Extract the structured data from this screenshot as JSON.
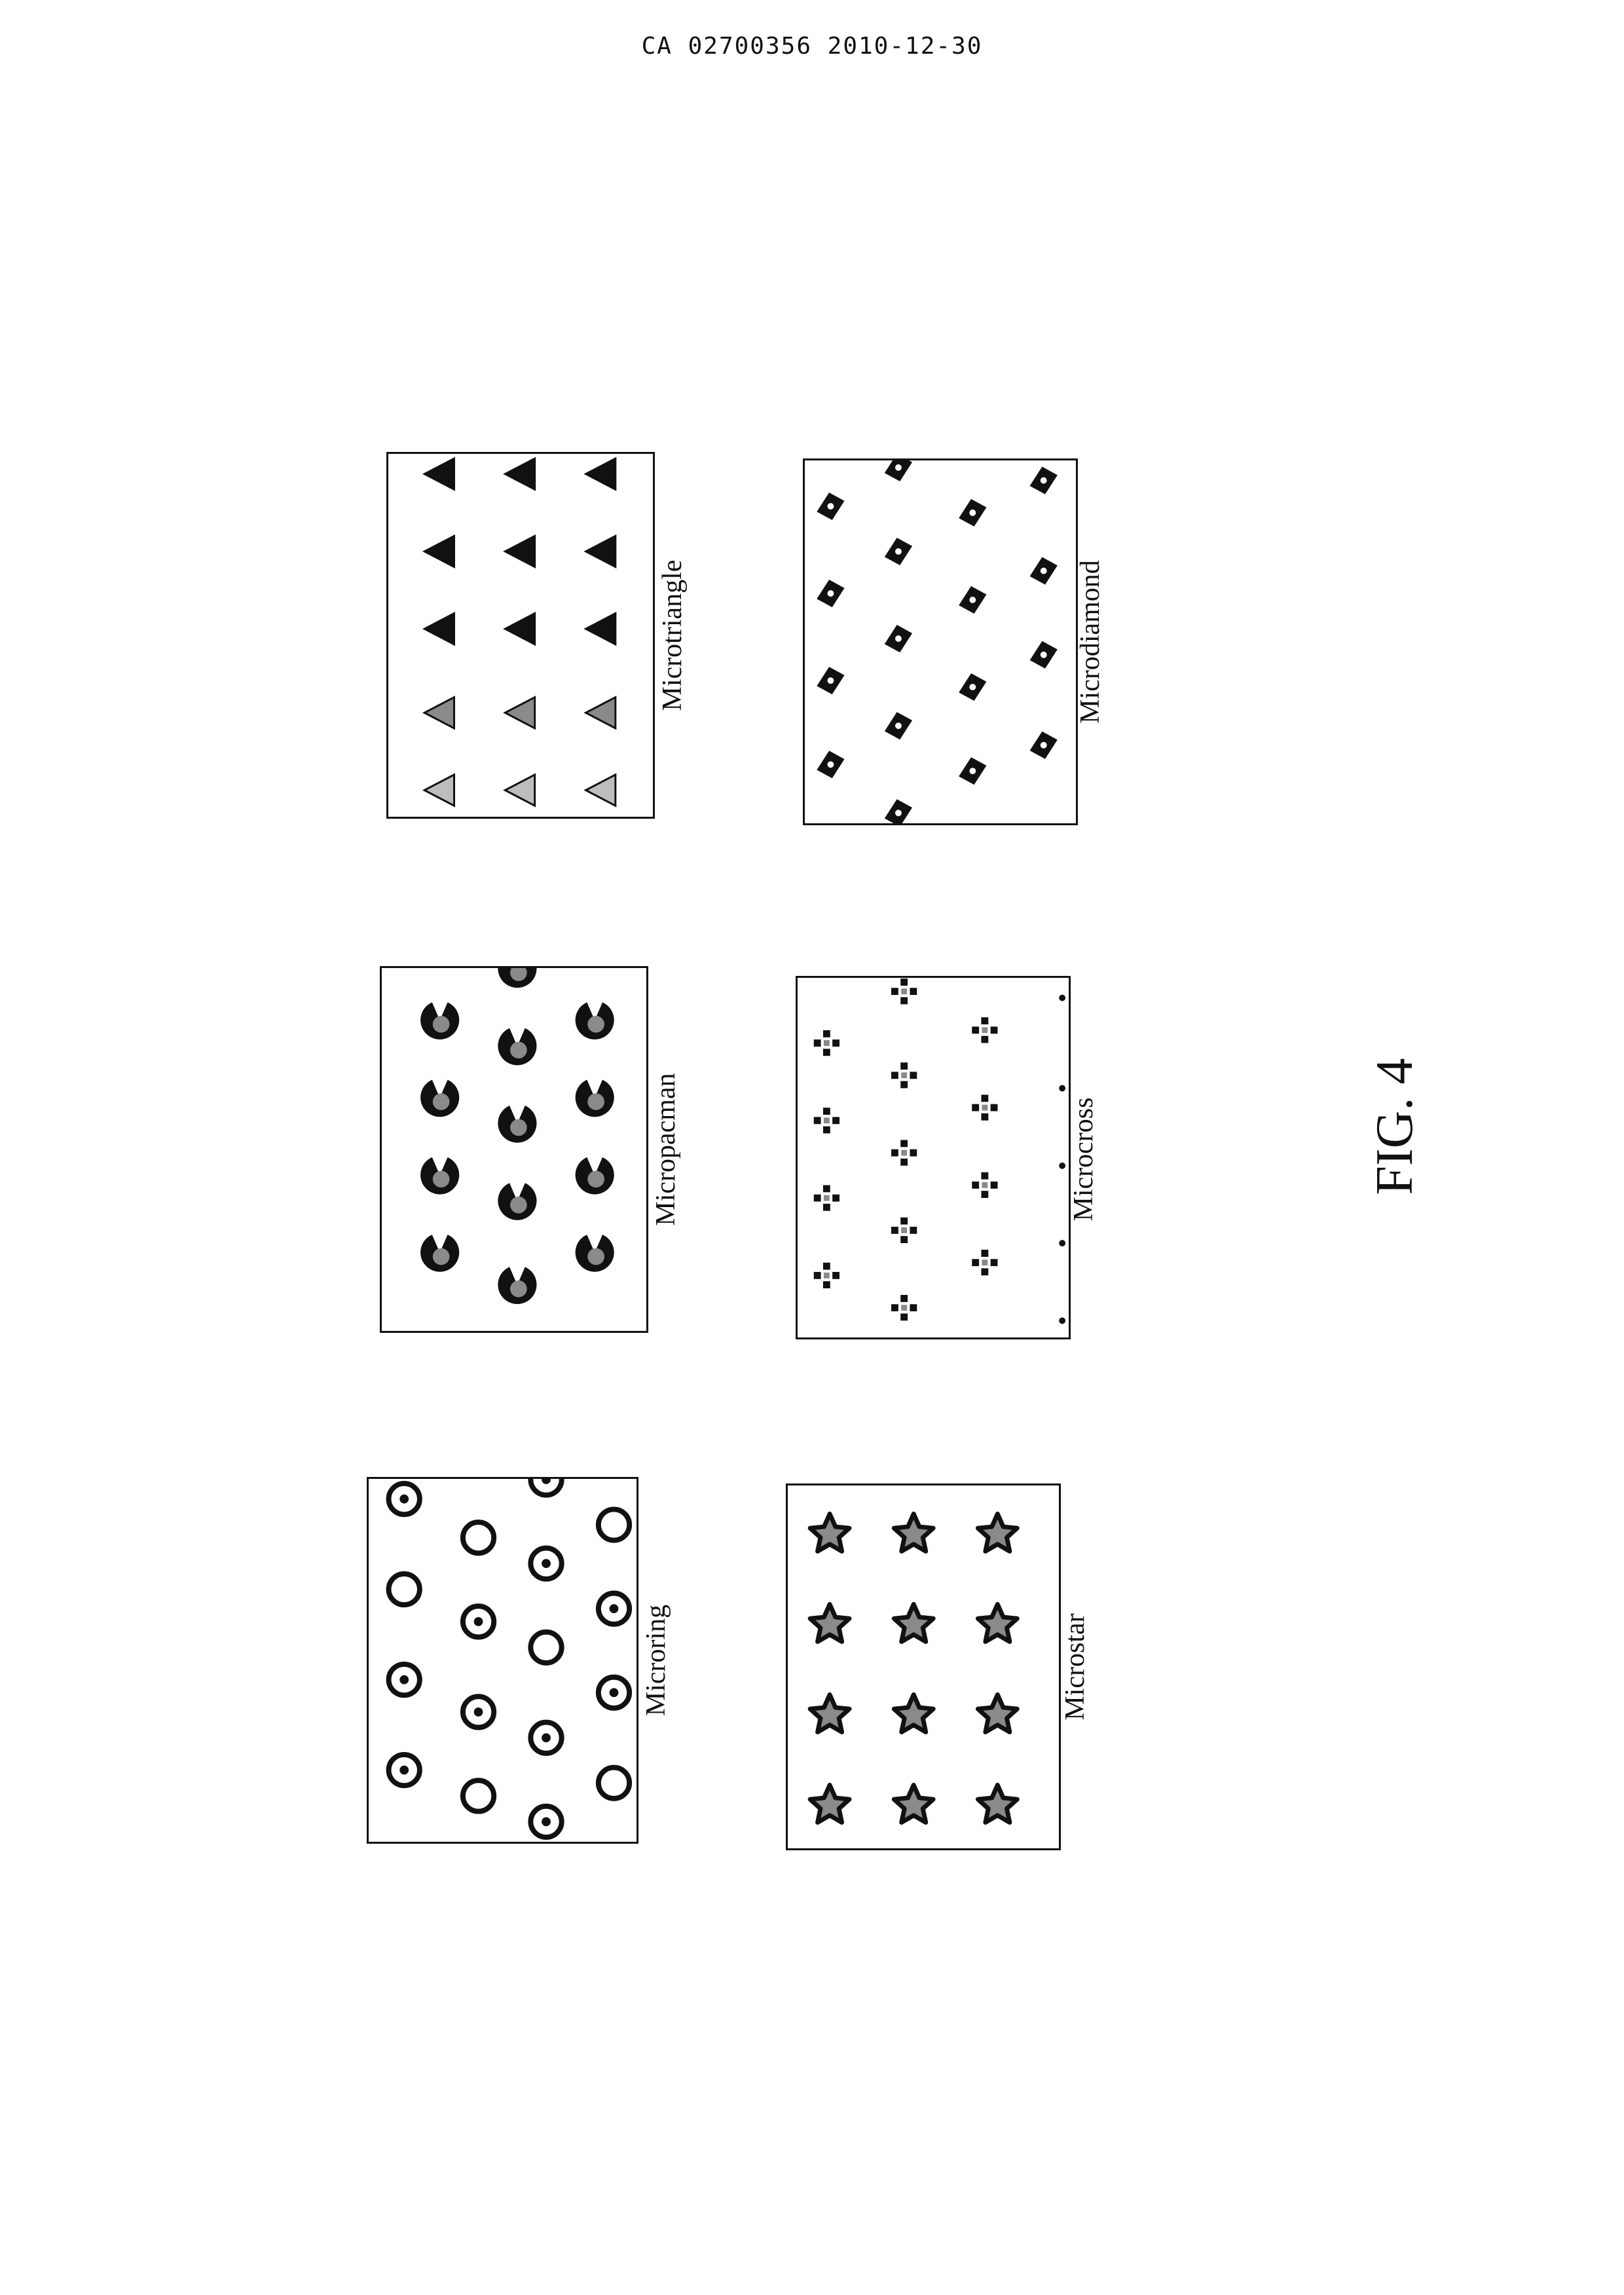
{
  "header": {
    "doc_id": "CA 02700356 2010-12-30"
  },
  "figure": {
    "label": "FIG. 4"
  },
  "panels": [
    {
      "key": "microtriangle",
      "caption": "Microtriangle",
      "shape": "triangle-icon"
    },
    {
      "key": "microdiamond",
      "caption": "Microdiamond",
      "shape": "diamond-icon"
    },
    {
      "key": "micropacman",
      "caption": "Micropacman",
      "shape": "pacman-icon"
    },
    {
      "key": "microcross",
      "caption": "Microcross",
      "shape": "cross-icon"
    },
    {
      "key": "microring",
      "caption": "Microring",
      "shape": "ring-icon"
    },
    {
      "key": "microstar",
      "caption": "Microstar",
      "shape": "star-icon"
    }
  ],
  "colors": {
    "ink": "#111111",
    "fill_gray": "#8a8a8a",
    "light_gray": "#bdbdbd"
  }
}
